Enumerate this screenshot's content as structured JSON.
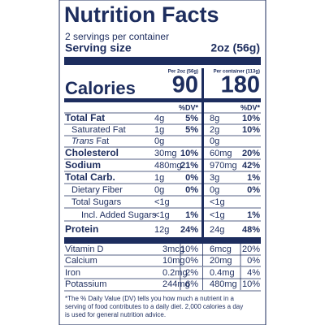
{
  "title": "Nutrition Facts",
  "servings": "2 servings per container",
  "serving_size_label": "Serving size",
  "serving_size": "2oz (56g)",
  "columns": [
    "Per 2oz (56g)",
    "Per container (113g)"
  ],
  "calories": {
    "label": "Calories",
    "values": [
      "90",
      "180"
    ]
  },
  "dv_header": "%DV*",
  "rows": [
    {
      "name": "Total Fat",
      "amount_1": "4g",
      "dv_1": "5%",
      "amount_2": "8g",
      "dv_2": "10%"
    },
    {
      "name": "Saturated Fat",
      "amount_1": "1g",
      "dv_1": "5%",
      "amount_2": "2g",
      "dv_2": "10%"
    },
    {
      "name_italic": "Trans",
      "name": "Fat",
      "amount_1": "0g",
      "amount_2": "0g"
    },
    {
      "name": "Cholesterol",
      "amount_1": "30mg",
      "dv_1": "10%",
      "amount_2": "60mg",
      "dv_2": "20%"
    },
    {
      "name": "Sodium",
      "amount_1": "480mg",
      "dv_1": "21%",
      "amount_2": "970mg",
      "dv_2": "42%"
    },
    {
      "name": "Total Carb.",
      "amount_1": "1g",
      "dv_1": "0%",
      "amount_2": "3g",
      "dv_2": "1%"
    },
    {
      "name": "Dietary Fiber",
      "amount_1": "0g",
      "dv_1": "0%",
      "amount_2": "0g",
      "dv_2": "0%"
    },
    {
      "name": "Total Sugars",
      "amount_1": "<1g",
      "amount_2": "<1g"
    },
    {
      "name": "Incl. Added Sugars",
      "amount_1": "<1g",
      "dv_1": "1%",
      "amount_2": "<1g",
      "dv_2": "1%"
    },
    {
      "name": "Protein",
      "amount_1": "12g",
      "dv_1": "24%",
      "amount_2": "24g",
      "dv_2": "48%"
    },
    {
      "name": "Vitamin D",
      "amount_1": "3mcg",
      "dv_1": "10%",
      "amount_2": "6mcg",
      "dv_2": "20%"
    },
    {
      "name": "Calcium",
      "amount_1": "10mg",
      "dv_1": "0%",
      "amount_2": "20mg",
      "dv_2": "0%"
    },
    {
      "name": "Iron",
      "amount_1": "0.2mg",
      "dv_1": "2%",
      "amount_2": "0.4mg",
      "dv_2": "4%"
    },
    {
      "name": "Potassium",
      "amount_1": "244mg",
      "dv_1": "6%",
      "amount_2": "480mg",
      "dv_2": "10%"
    }
  ],
  "footnote": [
    "*The % Daily Value (DV) tells you how much a nutrient in a",
    "serving of food contributes to a daily diet. 2,000 calories a day",
    "is used for general nutrition advice."
  ]
}
